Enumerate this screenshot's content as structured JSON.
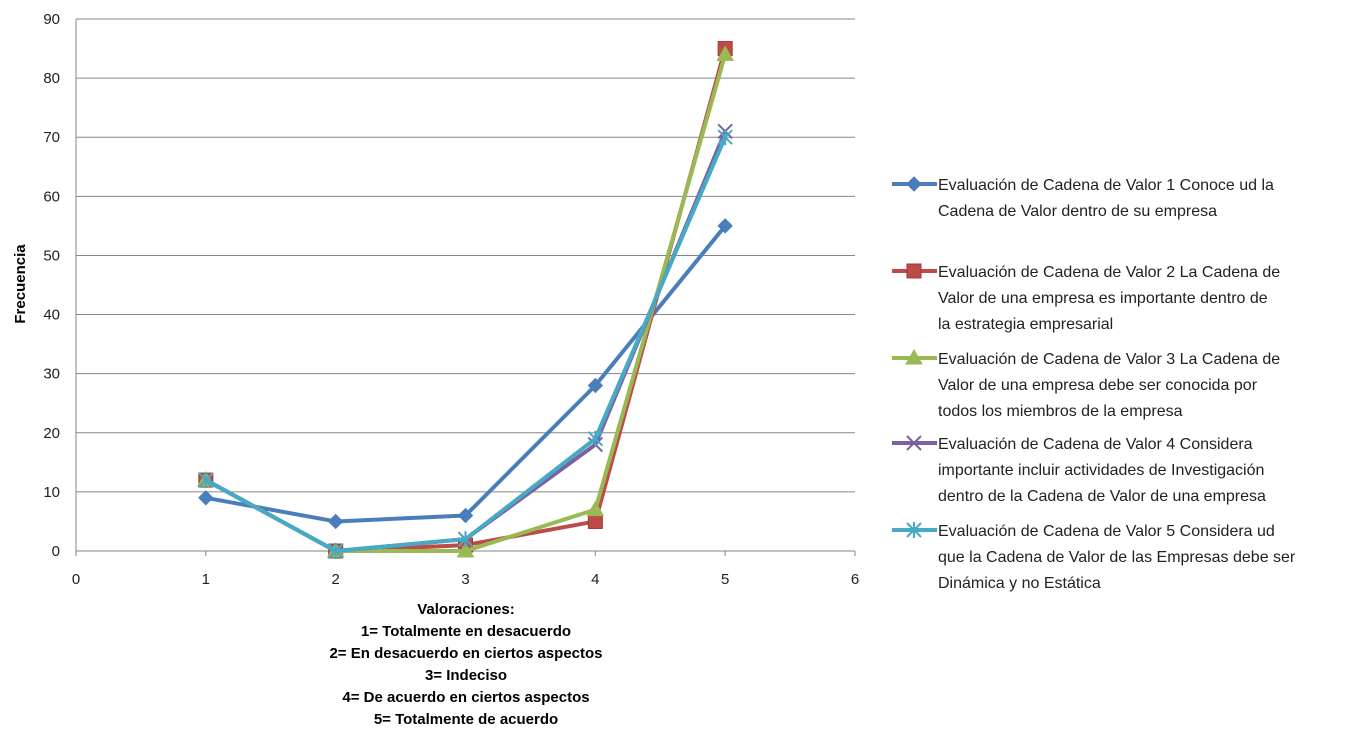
{
  "chart_data": {
    "type": "scatter",
    "title": "",
    "ylabel": "Frecuencia",
    "xlabel_lines": [
      "Valoraciones:",
      "1= Totalmente en desacuerdo",
      "2= En desacuerdo en ciertos aspectos",
      "3= Indeciso",
      "4= De acuerdo en ciertos aspectos",
      "5= Totalmente de acuerdo"
    ],
    "xlim": [
      0,
      6
    ],
    "ylim": [
      0,
      90
    ],
    "xticks": [
      0,
      1,
      2,
      3,
      4,
      5,
      6
    ],
    "yticks": [
      0,
      10,
      20,
      30,
      40,
      50,
      60,
      70,
      80,
      90
    ],
    "grid": "horizontal",
    "legend_position": "right",
    "x": [
      1,
      2,
      3,
      4,
      5
    ],
    "series": [
      {
        "name": "Evaluación de Cadena de Valor 1 Conoce ud la Cadena de Valor dentro de su empresa",
        "legend_lines": [
          "Evaluación de Cadena de Valor 1 Conoce ud la",
          "Cadena de Valor dentro de su empresa"
        ],
        "values": [
          9,
          5,
          6,
          28,
          55
        ],
        "color": "#4a7ebb",
        "marker": "diamond"
      },
      {
        "name": "Evaluación de Cadena de Valor 2 La Cadena de Valor de una empresa es importante dentro de la estrategia empresarial",
        "legend_lines": [
          "Evaluación de Cadena de Valor 2 La Cadena de",
          "Valor de una empresa es importante dentro de",
          "la estrategia empresarial"
        ],
        "values": [
          12,
          0,
          1,
          5,
          85
        ],
        "color": "#be4b48",
        "marker": "square"
      },
      {
        "name": "Evaluación de Cadena de Valor 3 La Cadena de Valor de una empresa debe ser conocida por todos los miembros de la empresa",
        "legend_lines": [
          "Evaluación de Cadena de Valor 3 La Cadena de",
          "Valor de una empresa debe ser conocida por",
          "todos los miembros de la empresa"
        ],
        "values": [
          12,
          0,
          0,
          7,
          84
        ],
        "color": "#98b954",
        "marker": "triangle"
      },
      {
        "name": "Evaluación de Cadena de Valor 4 Considera importante incluir actividades de Investigación dentro de la Cadena de Valor de una empresa",
        "legend_lines": [
          "Evaluación de Cadena de Valor 4 Considera",
          "importante incluir actividades de Investigación",
          "dentro de la Cadena de Valor de una empresa"
        ],
        "values": [
          12,
          0,
          2,
          18,
          71
        ],
        "color": "#7d60a0",
        "marker": "x"
      },
      {
        "name": "Evaluación de Cadena de Valor 5 Considera ud que la Cadena de Valor de las Empresas debe ser Dinámica y no Estática",
        "legend_lines": [
          "Evaluación de Cadena de Valor 5 Considera ud",
          "que la Cadena de Valor de las Empresas debe ser",
          "Dinámica y no Estática"
        ],
        "values": [
          12,
          0,
          2,
          19,
          70
        ],
        "color": "#46aac5",
        "marker": "star"
      }
    ]
  }
}
